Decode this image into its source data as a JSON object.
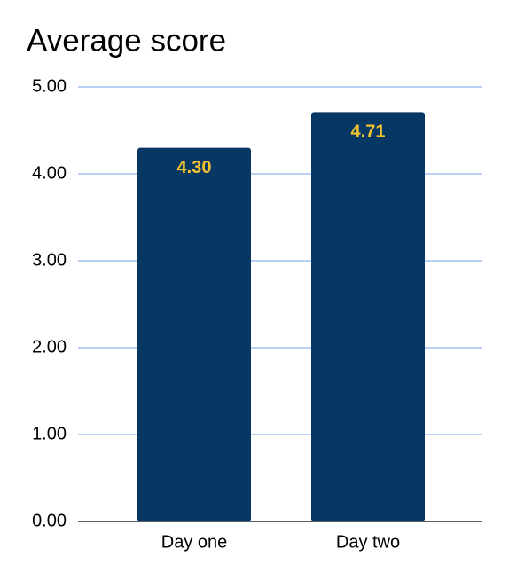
{
  "chart_data": {
    "type": "bar",
    "title": "Average score",
    "categories": [
      "Day one",
      "Day two"
    ],
    "values": [
      4.3,
      4.71
    ],
    "value_labels": [
      "4.30",
      "4.71"
    ],
    "color": "#073763",
    "label_color": "#f1c232",
    "ylim": [
      0,
      5
    ],
    "yticks": [
      {
        "value": 0,
        "label": "0.00"
      },
      {
        "value": 1,
        "label": "1.00"
      },
      {
        "value": 2,
        "label": "2.00"
      },
      {
        "value": 3,
        "label": "3.00"
      },
      {
        "value": 4,
        "label": "4.00"
      },
      {
        "value": 5,
        "label": "5.00"
      }
    ],
    "grid": true
  }
}
